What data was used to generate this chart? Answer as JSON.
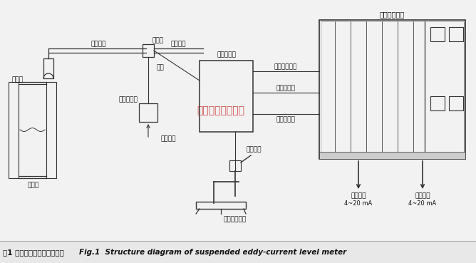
{
  "title_cn": "图1 悬挂式涡流液位计结构图",
  "title_en": "Fig.1  Structure diagram of suspended eddy-current level meter",
  "bg_color": "#f0f0f0",
  "watermark_text": "江苏华云流量计居",
  "watermark_color": "#cc2222",
  "labels": {
    "sensor": "传感器",
    "bracket": "支架悬管",
    "fixed_frame": "固定架",
    "integrated_cable": "集成电缆",
    "gas_pipe": "气管",
    "preamplifier": "前置放大器",
    "flow_filter": "节流过滤器",
    "cooling_gas": "冷却气体",
    "crystallizer": "结晶器",
    "sensor_signal_cable": "传感器信号缆",
    "control_signal_cable": "控制信号缆",
    "calibration_signal_cable": "标定信号缆",
    "eddy_meter": "涡流液位付表",
    "calibration_cable": "标定电缆",
    "auto_calibration": "自动标定装置",
    "level_signal": "液位信号",
    "temp_signal": "温度信号",
    "current_range": "4~20 mA"
  },
  "lc": "#333333"
}
